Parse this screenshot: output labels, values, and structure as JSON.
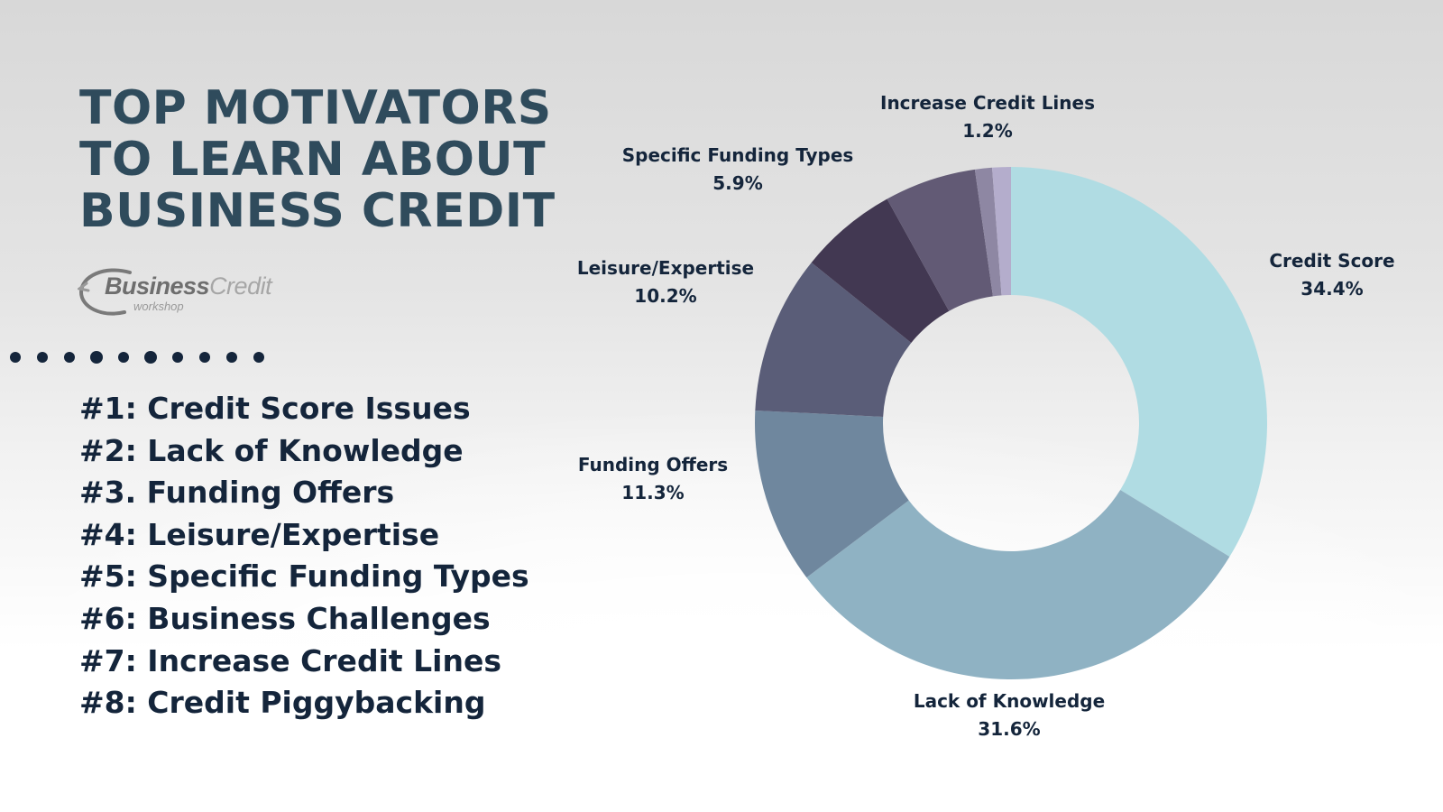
{
  "header": {
    "title_lines": [
      "TOP MOTIVATORS",
      "TO LEARN ABOUT",
      "BUSINESS CREDIT"
    ]
  },
  "logo": {
    "word_part1": "Business",
    "word_part2": "Credit",
    "sub": "workshop"
  },
  "list": {
    "items": [
      "#1: Credit Score Issues",
      "#2: Lack of Knowledge",
      "#3. Funding Offers",
      "#4: Leisure/Expertise",
      "#5: Specific Funding Types",
      "#6: Business Challenges",
      "#7: Increase Credit Lines",
      "#8: Credit Piggybacking"
    ]
  },
  "colors": {
    "title": "#2f4b5c",
    "list_text": "#14253b",
    "dots": "#14253b"
  },
  "chart_data": {
    "type": "pie",
    "donut": true,
    "slices": [
      {
        "label": "Credit Score",
        "value_label": "34.4%",
        "value": 34.4,
        "color": "#b0dce3"
      },
      {
        "label": "Lack of Knowledge",
        "value_label": "31.6%",
        "value": 31.6,
        "color": "#8fb2c3"
      },
      {
        "label": "Funding Offers",
        "value_label": "11.3%",
        "value": 11.3,
        "color": "#6f879e"
      },
      {
        "label": "Leisure/Expertise",
        "value_label": "10.2%",
        "value": 10.2,
        "color": "#5a5d78"
      },
      {
        "label": "",
        "value_label": "",
        "value": 6.3,
        "color": "#423852"
      },
      {
        "label": "Specific Funding Types",
        "value_label": "5.9%",
        "value": 5.9,
        "color": "#625a75"
      },
      {
        "label": "",
        "value_label": "",
        "value": 1.1,
        "color": "#8e87a3"
      },
      {
        "label": "Increase Credit Lines",
        "value_label": "1.2%",
        "value": 1.2,
        "color": "#b4adcc"
      }
    ]
  }
}
